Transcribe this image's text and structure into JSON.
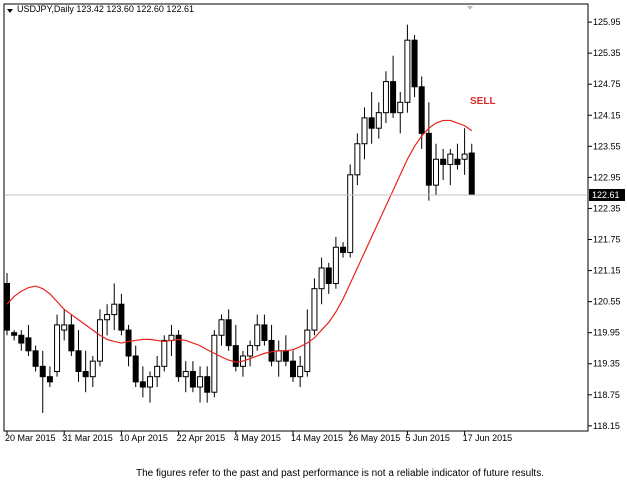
{
  "chart_data": {
    "type": "candlestick",
    "title": "USDJPY,Daily  123.42 123.60 122.60 122.61",
    "annotation": "SELL",
    "footnote": "The figures refer to the past and past performance is not a reliable indicator of future results.",
    "categories": [
      "20 Mar 2015",
      null,
      null,
      null,
      null,
      null,
      null,
      null,
      "31 Mar 2015",
      null,
      null,
      null,
      null,
      null,
      null,
      null,
      "10 Apr 2015",
      null,
      null,
      null,
      null,
      null,
      null,
      null,
      "22 Apr 2015",
      null,
      null,
      null,
      null,
      null,
      null,
      null,
      "4 May 2015",
      null,
      null,
      null,
      null,
      null,
      null,
      null,
      "14 May 2015",
      null,
      null,
      null,
      null,
      null,
      null,
      null,
      "26 May 2015",
      null,
      null,
      null,
      null,
      null,
      null,
      null,
      "5 Jun 2015",
      null,
      null,
      null,
      null,
      null,
      null,
      null,
      "17 Jun 2015",
      null
    ],
    "open": [
      120.9,
      119.95,
      119.9,
      119.85,
      119.6,
      119.3,
      119.1,
      119.2,
      120.0,
      120.1,
      119.6,
      119.2,
      119.1,
      119.4,
      120.2,
      120.3,
      120.5,
      120.0,
      119.5,
      119.0,
      118.9,
      119.1,
      119.3,
      119.8,
      119.9,
      119.1,
      119.2,
      118.9,
      119.1,
      118.8,
      119.9,
      120.2,
      119.7,
      119.3,
      119.5,
      119.7,
      120.1,
      119.8,
      119.4,
      119.6,
      119.4,
      119.1,
      119.2,
      120.0,
      120.8,
      121.2,
      120.9,
      121.6,
      121.5,
      123.0,
      123.6,
      124.1,
      123.9,
      124.2,
      124.8,
      124.2,
      124.4,
      125.6,
      124.7,
      123.8,
      122.8,
      123.3,
      123.2,
      123.3,
      123.3,
      123.42
    ],
    "high": [
      121.1,
      120.0,
      120.0,
      120.1,
      119.7,
      119.6,
      119.3,
      120.3,
      120.4,
      120.3,
      120.0,
      119.6,
      119.5,
      120.4,
      120.5,
      120.9,
      120.7,
      120.1,
      119.7,
      119.3,
      119.2,
      119.5,
      119.9,
      120.1,
      120.0,
      119.4,
      119.4,
      119.3,
      119.3,
      120.0,
      120.3,
      120.4,
      120.1,
      119.6,
      119.8,
      120.3,
      120.3,
      120.1,
      119.8,
      119.9,
      119.6,
      119.5,
      120.4,
      121.0,
      121.4,
      121.3,
      121.8,
      121.7,
      123.2,
      123.8,
      124.3,
      124.6,
      124.4,
      125.0,
      125.3,
      124.6,
      125.9,
      125.7,
      124.9,
      124.4,
      123.6,
      123.5,
      123.5,
      123.6,
      123.9,
      123.6
    ],
    "low": [
      119.9,
      119.8,
      119.6,
      119.5,
      119.2,
      118.4,
      118.9,
      119.1,
      119.8,
      119.5,
      119.0,
      118.8,
      118.9,
      119.3,
      119.9,
      120.0,
      119.9,
      119.3,
      118.9,
      118.7,
      118.6,
      118.9,
      119.2,
      119.5,
      119.0,
      118.8,
      118.8,
      118.6,
      118.6,
      118.7,
      119.7,
      119.6,
      119.2,
      119.1,
      119.3,
      119.6,
      119.7,
      119.3,
      119.1,
      119.3,
      119.0,
      118.9,
      119.1,
      119.9,
      120.5,
      120.7,
      120.8,
      121.4,
      121.4,
      122.8,
      123.3,
      123.6,
      123.7,
      124.0,
      124.1,
      123.8,
      124.2,
      124.5,
      123.5,
      122.5,
      122.6,
      122.9,
      122.8,
      123.1,
      123.0,
      122.6
    ],
    "close": [
      120.0,
      119.9,
      119.75,
      119.6,
      119.3,
      119.1,
      119.0,
      120.1,
      120.1,
      119.6,
      119.2,
      119.1,
      119.4,
      120.2,
      120.3,
      120.5,
      120.0,
      119.5,
      119.0,
      118.9,
      119.1,
      119.3,
      119.8,
      119.9,
      119.1,
      119.2,
      118.9,
      119.1,
      118.8,
      119.9,
      120.2,
      119.7,
      119.3,
      119.5,
      119.7,
      120.1,
      119.8,
      119.4,
      119.6,
      119.4,
      119.1,
      119.3,
      120.0,
      120.8,
      121.2,
      120.9,
      121.6,
      121.5,
      123.0,
      123.6,
      124.1,
      123.9,
      124.2,
      124.8,
      124.2,
      124.4,
      125.6,
      124.7,
      123.8,
      122.8,
      123.3,
      123.2,
      123.4,
      123.2,
      123.4,
      122.61
    ],
    "ma": {
      "color": "#e8231d",
      "values": [
        120.5,
        120.65,
        120.75,
        120.82,
        120.85,
        120.8,
        120.7,
        120.55,
        120.4,
        120.3,
        120.2,
        120.1,
        120.0,
        119.9,
        119.82,
        119.78,
        119.75,
        119.78,
        119.8,
        119.82,
        119.82,
        119.8,
        119.78,
        119.8,
        119.82,
        119.8,
        119.75,
        119.7,
        119.62,
        119.55,
        119.48,
        119.42,
        119.38,
        119.4,
        119.45,
        119.5,
        119.55,
        119.58,
        119.6,
        119.6,
        119.62,
        119.68,
        119.75,
        119.85,
        120.0,
        120.15,
        120.35,
        120.6,
        120.9,
        121.2,
        121.5,
        121.8,
        122.1,
        122.4,
        122.7,
        123.0,
        123.3,
        123.55,
        123.75,
        123.9,
        124.0,
        124.05,
        124.05,
        124.0,
        123.95,
        123.85
      ]
    },
    "up_color": "#ffffff",
    "down_color": "#000000",
    "ylim": [
      118.07,
      126.28
    ],
    "yticks": [
      125.95,
      125.35,
      124.75,
      124.15,
      123.55,
      122.95,
      122.35,
      121.75,
      121.15,
      120.55,
      119.95,
      119.35,
      118.75,
      118.15
    ]
  }
}
